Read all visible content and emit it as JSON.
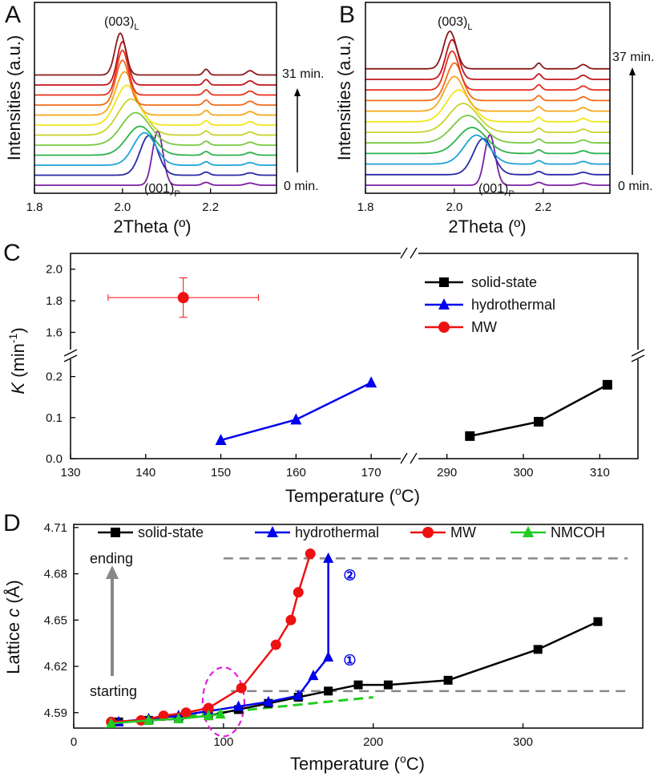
{
  "chart_data": [
    {
      "panel": "A",
      "type": "line",
      "xlabel": "2Theta (º)",
      "ylabel": "Intensities (a.u.)",
      "xlim": [
        1.8,
        2.35
      ],
      "xticks": [
        "1.8",
        "2.0",
        "2.2"
      ],
      "time_start_label": "0 min.",
      "time_end_label": "31 min.",
      "peak_label_L": "(003)",
      "peak_label_L_sub": "L",
      "peak_label_P": "(001)",
      "peak_label_P_sub": "P",
      "series": [
        {
          "color": "#7a1fa2",
          "peak_x": 2.08,
          "peak_h": 75,
          "width": 0.012
        },
        {
          "color": "#2a2aa8",
          "peak_x": 2.06,
          "peak_h": 55,
          "width": 0.02
        },
        {
          "color": "#1ea3d6",
          "peak_x": 2.05,
          "peak_h": 45,
          "width": 0.025
        },
        {
          "color": "#2db34a",
          "peak_x": 2.04,
          "peak_h": 40,
          "width": 0.03
        },
        {
          "color": "#7ac943",
          "peak_x": 2.03,
          "peak_h": 45,
          "width": 0.032
        },
        {
          "color": "#c8d42a",
          "peak_x": 2.02,
          "peak_h": 50,
          "width": 0.03
        },
        {
          "color": "#f2e51a",
          "peak_x": 2.01,
          "peak_h": 55,
          "width": 0.025
        },
        {
          "color": "#f7a71b",
          "peak_x": 2.005,
          "peak_h": 60,
          "width": 0.02
        },
        {
          "color": "#f06d1a",
          "peak_x": 2.0,
          "peak_h": 62,
          "width": 0.015
        },
        {
          "color": "#e8301f",
          "peak_x": 2.0,
          "peak_h": 62,
          "width": 0.013
        },
        {
          "color": "#c4161c",
          "peak_x": 2.0,
          "peak_h": 60,
          "width": 0.012
        },
        {
          "color": "#8b1a1a",
          "peak_x": 1.995,
          "peak_h": 58,
          "width": 0.012
        }
      ]
    },
    {
      "panel": "B",
      "type": "line",
      "xlabel": "2Theta (º)",
      "ylabel": "Intensities (a.u.)",
      "xlim": [
        1.8,
        2.35
      ],
      "xticks": [
        "1.8",
        "2.0",
        "2.2"
      ],
      "time_start_label": "0 min.",
      "time_end_label": "37 min.",
      "peak_label_L": "(003)",
      "peak_label_L_sub": "L",
      "peak_label_P": "(001)",
      "peak_label_P_sub": "P",
      "series": [
        {
          "color": "#7a1fa2",
          "peak_x": 2.08,
          "peak_h": 70,
          "width": 0.012
        },
        {
          "color": "#2a2aa8",
          "peak_x": 2.065,
          "peak_h": 50,
          "width": 0.022
        },
        {
          "color": "#1ea3d6",
          "peak_x": 2.05,
          "peak_h": 40,
          "width": 0.028
        },
        {
          "color": "#2db34a",
          "peak_x": 2.04,
          "peak_h": 36,
          "width": 0.032
        },
        {
          "color": "#7ac943",
          "peak_x": 2.03,
          "peak_h": 38,
          "width": 0.034
        },
        {
          "color": "#c8d42a",
          "peak_x": 2.02,
          "peak_h": 40,
          "width": 0.032
        },
        {
          "color": "#f2e51a",
          "peak_x": 2.01,
          "peak_h": 44,
          "width": 0.028
        },
        {
          "color": "#f7a71b",
          "peak_x": 2.0,
          "peak_h": 48,
          "width": 0.022
        },
        {
          "color": "#f06d1a",
          "peak_x": 2.0,
          "peak_h": 52,
          "width": 0.018
        },
        {
          "color": "#e8301f",
          "peak_x": 1.995,
          "peak_h": 54,
          "width": 0.015
        },
        {
          "color": "#c4161c",
          "peak_x": 1.995,
          "peak_h": 55,
          "width": 0.014
        },
        {
          "color": "#8b1a1a",
          "peak_x": 1.99,
          "peak_h": 52,
          "width": 0.014
        }
      ]
    },
    {
      "panel": "C",
      "type": "line",
      "xlabel": "Temperature (",
      "xlabel_sup": "o",
      "xlabel_end": "C)",
      "ylabel_k": "K",
      "ylabel_rest": " (min",
      "ylabel_sup": "-1",
      "ylabel_end": ")",
      "x_left_range": [
        130,
        175
      ],
      "x_right_range": [
        285,
        315
      ],
      "x_left_ticks": [
        "130",
        "140",
        "150",
        "160",
        "170"
      ],
      "x_right_ticks": [
        "290",
        "300",
        "310"
      ],
      "y_low_range": [
        0,
        0.25
      ],
      "y_high_range": [
        1.45,
        2.1
      ],
      "y_low_ticks": [
        "0.0",
        "0.1",
        "0.2"
      ],
      "y_high_ticks": [
        "1.6",
        "1.8",
        "2.0"
      ],
      "legend": [
        "solid-state",
        "hydrothermal",
        "MW"
      ],
      "series": [
        {
          "name": "solid-state",
          "color": "#000000",
          "marker": "square",
          "x": [
            293,
            302,
            311
          ],
          "y": [
            0.055,
            0.09,
            0.18
          ]
        },
        {
          "name": "hydrothermal",
          "color": "#0000ee",
          "marker": "triangle",
          "x": [
            150,
            160,
            170
          ],
          "y": [
            0.045,
            0.095,
            0.185
          ]
        },
        {
          "name": "MW",
          "color": "#ee1111",
          "marker": "circle",
          "x": [
            145
          ],
          "y": [
            1.82
          ],
          "xerr": 10,
          "yerr": 0.125
        }
      ]
    },
    {
      "panel": "D",
      "type": "line",
      "xlabel": "Temperature (",
      "xlabel_sup": "o",
      "xlabel_end": "C)",
      "ylabel": "Lattice ",
      "ylabel_c": "c",
      "ylabel_unit": " (Å)",
      "xlim": [
        0,
        380
      ],
      "ylim": [
        4.58,
        4.712
      ],
      "xticks": [
        "0",
        "100",
        "200",
        "300"
      ],
      "yticks": [
        "4.59",
        "4.62",
        "4.65",
        "4.68",
        "4.71"
      ],
      "legend": [
        "solid-state",
        "hydrothermal",
        "MW",
        "NMCOH"
      ],
      "ending_label": "ending",
      "starting_label": "starting",
      "ending_level": 4.69,
      "starting_level": 4.604,
      "circle_label_1": "①",
      "circle_label_2": "②",
      "series": [
        {
          "name": "solid-state",
          "color": "#000000",
          "marker": "square",
          "x": [
            30,
            50,
            70,
            90,
            110,
            130,
            150,
            170,
            190,
            210,
            250,
            310,
            350
          ],
          "y": [
            4.584,
            4.585,
            4.586,
            4.588,
            4.592,
            4.596,
            4.6,
            4.604,
            4.608,
            4.608,
            4.611,
            4.631,
            4.649
          ]
        },
        {
          "name": "hydrothermal",
          "color": "#0000ee",
          "marker": "triangle",
          "x": [
            30,
            50,
            70,
            90,
            110,
            130,
            150,
            160,
            170,
            170
          ],
          "y": [
            4.584,
            4.586,
            4.588,
            4.591,
            4.594,
            4.597,
            4.601,
            4.614,
            4.626,
            4.69
          ]
        },
        {
          "name": "MW",
          "color": "#ee1111",
          "marker": "circle",
          "x": [
            25,
            45,
            60,
            75,
            90,
            112,
            135,
            145,
            150,
            158
          ],
          "y": [
            4.584,
            4.585,
            4.588,
            4.59,
            4.593,
            4.606,
            4.634,
            4.65,
            4.668,
            4.693
          ]
        },
        {
          "name": "NMCOH",
          "color": "#22cc22",
          "marker": "triangle",
          "x": [
            25,
            50,
            70,
            90,
            98
          ],
          "y": [
            4.583,
            4.585,
            4.586,
            4.588,
            4.589
          ]
        }
      ]
    }
  ],
  "panel_labels": {
    "a": "A",
    "b": "B",
    "c": "C",
    "d": "D"
  }
}
